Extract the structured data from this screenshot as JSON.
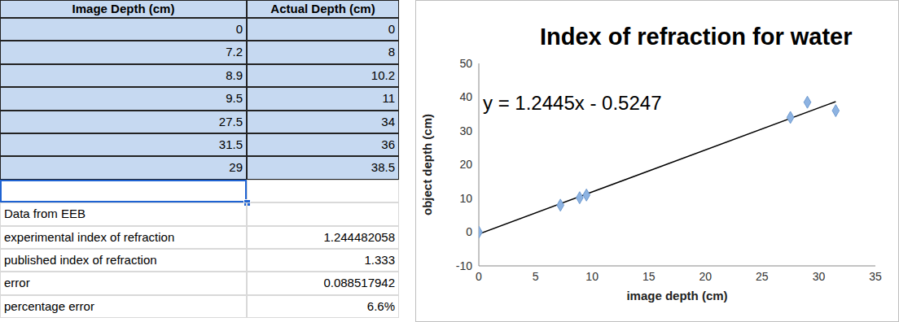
{
  "table": {
    "header": [
      "Image Depth (cm)",
      "Actual Depth (cm)"
    ],
    "rows": [
      [
        "0",
        "0"
      ],
      [
        "7.2",
        "8"
      ],
      [
        "8.9",
        "10.2"
      ],
      [
        "9.5",
        "11"
      ],
      [
        "27.5",
        "34"
      ],
      [
        "31.5",
        "36"
      ],
      [
        "29",
        "38.5"
      ]
    ]
  },
  "summary": {
    "title": "Data from EEB",
    "rows": [
      [
        "experimental index of refraction",
        "1.244482058"
      ],
      [
        "published index of refraction",
        "1.333"
      ],
      [
        "error",
        "0.088517942"
      ],
      [
        "percentage error",
        "6.6%"
      ]
    ]
  },
  "chart_data": {
    "type": "scatter",
    "title": "Index of refraction for water",
    "x_label": "image depth (cm)",
    "y_label": "object depth (cm)",
    "x": [
      0,
      7.2,
      8.9,
      9.5,
      27.5,
      31.5,
      29
    ],
    "values": [
      0,
      8,
      10.2,
      11,
      34,
      36,
      38.5
    ],
    "color": "#8db3e2",
    "marker": "diamond",
    "xlim": [
      0,
      35
    ],
    "ylim": [
      -10,
      50
    ],
    "xticks": [
      0,
      5,
      10,
      15,
      20,
      25,
      30,
      35
    ],
    "yticks": [
      -10,
      0,
      10,
      20,
      30,
      40,
      50
    ],
    "grid": false,
    "trendline": {
      "slope": 1.2445,
      "intercept": -0.5247,
      "equation": "y = 1.2445x - 0.5247"
    }
  }
}
